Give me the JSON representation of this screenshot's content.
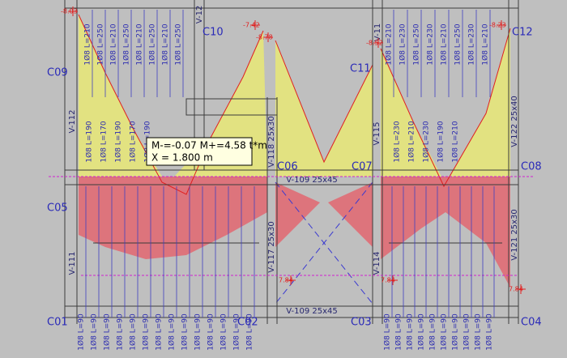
{
  "columns": [
    "C01",
    "C02",
    "C03",
    "C04",
    "C05",
    "C06",
    "C07",
    "C08",
    "C09",
    "C10",
    "C11",
    "C12"
  ],
  "beams": [
    "V-109  25x45",
    "V-109  25x45",
    "V-118  25x30",
    "V-117  25x30",
    "V-114",
    "V-115",
    "V-112",
    "V-111",
    "V-121  25x30",
    "V-122  25x40",
    "V-12",
    "V-11"
  ],
  "moment_labels": [
    "-8.03",
    "-7.42",
    "-8.78",
    "-8.52",
    "-8.23",
    "7.84",
    "7.84",
    "7.84"
  ],
  "tooltip": {
    "line1": "M-=-0.07 M+=4.58 t*m",
    "line2": "X = 1.800 m"
  },
  "bottom_rebars": [
    "1Ø8 L=90",
    "1Ø8 L=90",
    "1Ø8 L=90",
    "1Ø8 L=90",
    "1Ø8 L=90",
    "1Ø8 L=90",
    "1Ø8 L=90",
    "1Ø8 L=90",
    "1Ø8 L=90",
    "1Ø8 L=90",
    "1Ø8 L=90",
    "1Ø8 L=90",
    "1Ø8 L=90",
    "1Ø8 L=90",
    "1Ø8 L=90",
    "1Ø8 L=90",
    "1Ø8 L=90",
    "1Ø8 L=90",
    "1Ø8 L=90",
    "1Ø8 L=90",
    "1Ø8 L=90",
    "1Ø8 L=90",
    "1Ø8 L=90",
    "1Ø8 L=90"
  ],
  "top_rebars": [
    "1Ø8 L=210",
    "1Ø8 L=250",
    "1Ø8 L=210",
    "1Ø8 L=250",
    "1Ø8 L=210",
    "1Ø8 L=250",
    "1Ø8 L=210",
    "1Ø8 L=250",
    "1Ø8 L=210",
    "1Ø8 L=230",
    "1Ø8 L=250",
    "1Ø8 L=230",
    "1Ø8 L=210",
    "1Ø8 L=250",
    "1Ø8 L=230",
    "1Ø8 L=210"
  ],
  "mid_rebars": [
    "1Ø8 L=190",
    "1Ø8 L=170",
    "1Ø8 L=190",
    "1Ø8 L=170",
    "1Ø8 L=190",
    "1Ø8 L=230",
    "1Ø8 L=210",
    "1Ø8 L=230",
    "1Ø8 L=190",
    "1Ø8 L=210"
  ]
}
